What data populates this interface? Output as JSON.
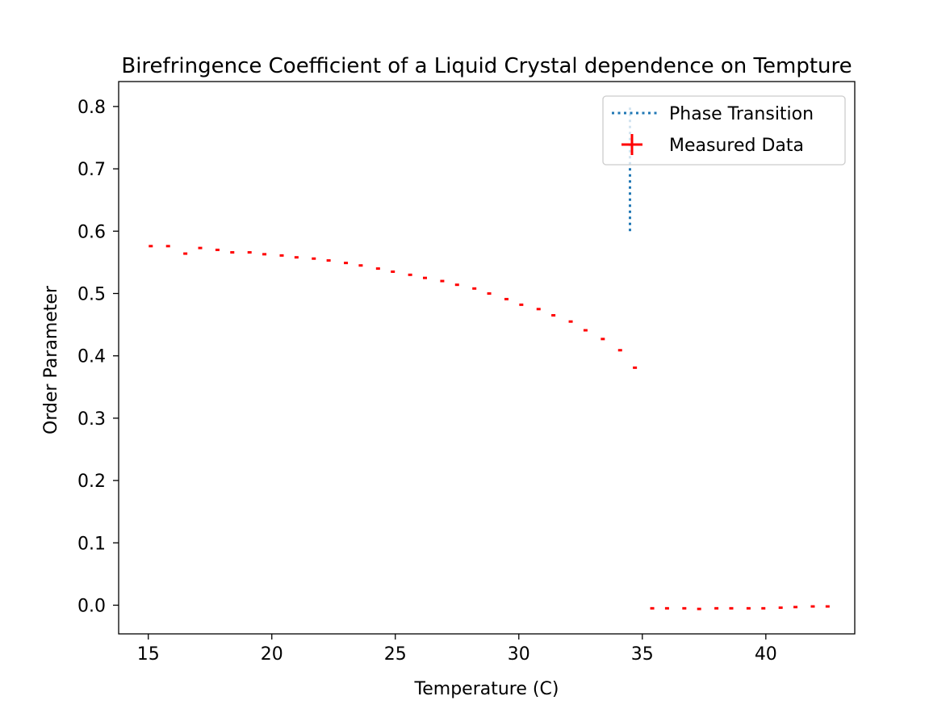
{
  "chart_data": {
    "type": "scatter",
    "title": "Birefringence Coefficient of a Liquid Crystal dependence on Tempture",
    "xlabel": "Temperature (C)",
    "ylabel": "Order Parameter",
    "xlim": [
      13.8,
      43.6
    ],
    "ylim": [
      -0.046,
      0.84
    ],
    "xticks": [
      15,
      20,
      25,
      30,
      35,
      40
    ],
    "yticks": [
      0.0,
      0.1,
      0.2,
      0.3,
      0.4,
      0.5,
      0.6,
      0.7,
      0.8
    ],
    "xtick_labels": [
      "15",
      "20",
      "25",
      "30",
      "35",
      "40"
    ],
    "ytick_labels": [
      "0.0",
      "0.1",
      "0.2",
      "0.3",
      "0.4",
      "0.5",
      "0.6",
      "0.7",
      "0.8"
    ],
    "grid": false,
    "legend_position": "upper right",
    "legend": [
      "Phase Transition",
      "Measured Data"
    ],
    "colors": {
      "measured": "#ff0000",
      "transition": "#1f77b4",
      "axes": "#000000"
    },
    "series": [
      {
        "name": "Measured Data",
        "marker": "+",
        "x": [
          15.1,
          15.8,
          16.5,
          17.1,
          17.8,
          18.4,
          19.1,
          19.7,
          20.4,
          21.0,
          21.7,
          22.3,
          23.0,
          23.6,
          24.3,
          24.9,
          25.6,
          26.2,
          26.9,
          27.5,
          28.2,
          28.8,
          29.5,
          30.1,
          30.8,
          31.4,
          32.1,
          32.7,
          33.4,
          34.1,
          34.7,
          35.4,
          36.0,
          36.7,
          37.3,
          38.0,
          38.6,
          39.3,
          39.9,
          40.6,
          41.2,
          41.9,
          42.5
        ],
        "y": [
          0.576,
          0.576,
          0.564,
          0.573,
          0.57,
          0.566,
          0.566,
          0.563,
          0.561,
          0.558,
          0.556,
          0.553,
          0.549,
          0.545,
          0.54,
          0.535,
          0.53,
          0.525,
          0.52,
          0.514,
          0.508,
          0.5,
          0.491,
          0.482,
          0.475,
          0.465,
          0.455,
          0.441,
          0.427,
          0.409,
          0.381,
          -0.005,
          -0.005,
          -0.005,
          -0.006,
          -0.005,
          -0.005,
          -0.005,
          -0.005,
          -0.004,
          -0.003,
          -0.002,
          -0.002
        ]
      },
      {
        "name": "Phase Transition",
        "style": "dotted",
        "x": [
          34.5,
          34.5
        ],
        "y": [
          0.6,
          0.8
        ]
      }
    ]
  }
}
